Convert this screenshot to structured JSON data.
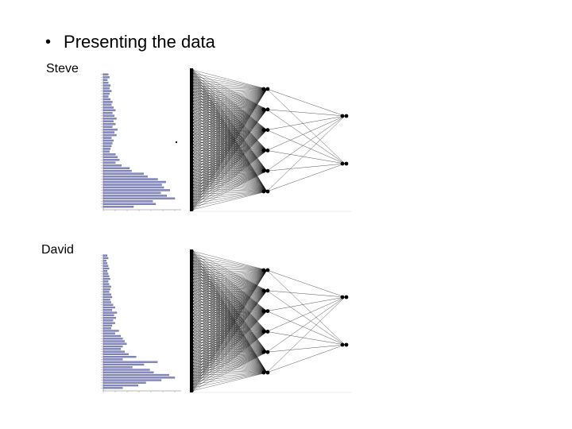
{
  "slide": {
    "bullet": "Presenting the data"
  },
  "panels": [
    {
      "person": "Steve",
      "histogram": [
        5,
        6,
        4,
        5,
        7,
        6,
        8,
        6,
        5,
        7,
        9,
        8,
        10,
        12,
        9,
        11,
        13,
        10,
        12,
        9,
        14,
        11,
        13,
        8,
        10,
        9,
        8,
        7,
        6,
        12,
        14,
        16,
        12,
        18,
        26,
        28,
        40,
        44,
        54,
        62,
        58,
        60,
        66,
        57,
        63,
        71,
        49,
        52,
        30
      ],
      "network": {
        "inputs": 46,
        "hidden": 6,
        "outputs": 2
      }
    },
    {
      "person": "David",
      "histogram": [
        4,
        5,
        3,
        4,
        5,
        6,
        4,
        5,
        6,
        7,
        5,
        6,
        8,
        7,
        6,
        8,
        9,
        7,
        8,
        10,
        12,
        9,
        14,
        11,
        13,
        10,
        12,
        9,
        8,
        16,
        12,
        18,
        20,
        22,
        24,
        20,
        18,
        22,
        26,
        34,
        20,
        56,
        42,
        30,
        48,
        52,
        68,
        74,
        60,
        44,
        36,
        20
      ],
      "network": {
        "inputs": 46,
        "hidden": 6,
        "outputs": 2
      }
    }
  ],
  "colors": {
    "bar_fill": "#8a8ec6",
    "bar_stroke": "#3c4080",
    "wire": "#000000",
    "node": "#000000",
    "input_column": "#000000"
  }
}
